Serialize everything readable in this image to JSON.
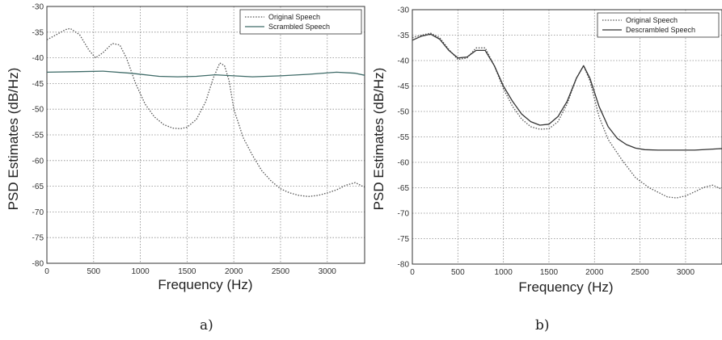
{
  "chart_data": [
    {
      "panel": "a)",
      "type": "line",
      "xlabel": "Frequency (Hz)",
      "ylabel": "PSD Estimates (dB/Hz)",
      "xlim": [
        0,
        3400
      ],
      "ylim": [
        -80,
        -30
      ],
      "xticks": [
        0,
        500,
        1000,
        1500,
        2000,
        2500,
        3000
      ],
      "yticks": [
        -30,
        -35,
        -40,
        -45,
        -50,
        -55,
        -60,
        -65,
        -70,
        -75,
        -80
      ],
      "grid": true,
      "legend_position": "top-right",
      "series": [
        {
          "name": "Original Speech",
          "style": "dotted",
          "color": "#555555",
          "x": [
            0,
            100,
            200,
            250,
            350,
            450,
            520,
            600,
            700,
            780,
            850,
            950,
            1050,
            1150,
            1250,
            1350,
            1430,
            1500,
            1600,
            1700,
            1780,
            1850,
            1900,
            1950,
            2000,
            2100,
            2200,
            2300,
            2400,
            2500,
            2600,
            2700,
            2800,
            2900,
            3000,
            3100,
            3200,
            3300,
            3400
          ],
          "y": [
            -36.5,
            -35.5,
            -34.5,
            -34.3,
            -35.5,
            -38.5,
            -40.0,
            -39.0,
            -37.2,
            -37.5,
            -40.0,
            -45.0,
            -49.0,
            -51.5,
            -53.0,
            -53.7,
            -53.8,
            -53.5,
            -52.0,
            -48.5,
            -44.0,
            -41.0,
            -41.5,
            -44.5,
            -50.0,
            -55.5,
            -59.0,
            -62.0,
            -64.0,
            -65.5,
            -66.3,
            -66.8,
            -67.0,
            -66.8,
            -66.3,
            -65.7,
            -64.8,
            -64.3,
            -65.2
          ]
        },
        {
          "name": "Scrambled Speech",
          "style": "solid",
          "color": "#3f6b68",
          "x": [
            0,
            300,
            600,
            900,
            1200,
            1400,
            1600,
            1800,
            2000,
            2200,
            2500,
            2800,
            3100,
            3300,
            3400
          ],
          "y": [
            -42.8,
            -42.7,
            -42.6,
            -43.0,
            -43.6,
            -43.7,
            -43.6,
            -43.3,
            -43.5,
            -43.7,
            -43.5,
            -43.2,
            -42.8,
            -43.0,
            -43.4
          ]
        }
      ]
    },
    {
      "panel": "b)",
      "type": "line",
      "xlabel": "Frequency (Hz)",
      "ylabel": "PSD Estimates (dB/Hz)",
      "xlim": [
        0,
        3400
      ],
      "ylim": [
        -80,
        -30
      ],
      "xticks": [
        0,
        500,
        1000,
        1500,
        2000,
        2500,
        3000
      ],
      "yticks": [
        -30,
        -35,
        -40,
        -45,
        -50,
        -55,
        -60,
        -65,
        -70,
        -75,
        -80
      ],
      "grid": true,
      "legend_position": "top-right",
      "series": [
        {
          "name": "Original Speech",
          "style": "dotted",
          "color": "#555555",
          "x": [
            0,
            100,
            200,
            300,
            400,
            500,
            600,
            700,
            800,
            900,
            1000,
            1100,
            1200,
            1300,
            1400,
            1500,
            1600,
            1700,
            1800,
            1880,
            1950,
            2050,
            2150,
            2300,
            2450,
            2600,
            2800,
            2900,
            3000,
            3100,
            3200,
            3300,
            3400
          ],
          "y": [
            -35.5,
            -35.0,
            -34.6,
            -35.5,
            -37.8,
            -39.8,
            -39.5,
            -37.5,
            -37.5,
            -41.0,
            -45.5,
            -49.0,
            -51.5,
            -53.0,
            -53.5,
            -53.4,
            -52.0,
            -48.5,
            -43.5,
            -41.0,
            -44.0,
            -51.0,
            -55.5,
            -59.5,
            -63.0,
            -65.0,
            -66.8,
            -67.0,
            -66.6,
            -65.8,
            -64.9,
            -64.5,
            -65.3
          ]
        },
        {
          "name": "Descrambled Speech",
          "style": "solid",
          "color": "#333333",
          "x": [
            0,
            100,
            200,
            300,
            400,
            500,
            600,
            700,
            800,
            900,
            1000,
            1100,
            1200,
            1300,
            1400,
            1500,
            1600,
            1700,
            1800,
            1880,
            1950,
            2050,
            2150,
            2250,
            2350,
            2450,
            2550,
            2700,
            2900,
            3100,
            3300,
            3400
          ],
          "y": [
            -36.0,
            -35.2,
            -34.8,
            -35.8,
            -38.0,
            -39.5,
            -39.3,
            -38.0,
            -38.0,
            -41.0,
            -45.0,
            -48.0,
            -50.5,
            -52.0,
            -52.7,
            -52.5,
            -51.0,
            -48.0,
            -43.5,
            -41.0,
            -43.5,
            -49.0,
            -53.0,
            -55.3,
            -56.5,
            -57.2,
            -57.5,
            -57.6,
            -57.6,
            -57.6,
            -57.4,
            -57.3
          ]
        }
      ]
    }
  ],
  "captions": {
    "a": "a)",
    "b": "b)"
  }
}
